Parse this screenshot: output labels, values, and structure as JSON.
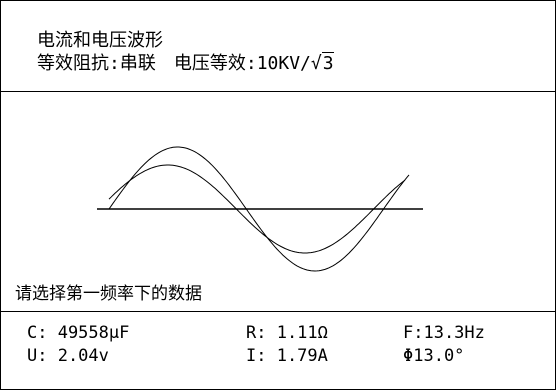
{
  "header": {
    "title": "电流和电压波形",
    "impedance_label": "等效阻抗:",
    "impedance_value": "串联",
    "voltage_label": "电压等效:",
    "voltage_value_prefix": "10KV/",
    "voltage_value_sqrt_symbol": "√",
    "voltage_value_sqrt_arg": "3"
  },
  "prompt": "请选择第一频率下的数据",
  "readings": {
    "capacitance": "C: 49558μF",
    "resistance": "R: 1.11Ω",
    "frequency": "F:13.3Hz",
    "voltage": "U: 2.04v",
    "current": "I: 1.79A",
    "phase": "Φ13.0°"
  },
  "waveform": {
    "phase_shift_deg": 13.0,
    "line_color": "#000000"
  }
}
